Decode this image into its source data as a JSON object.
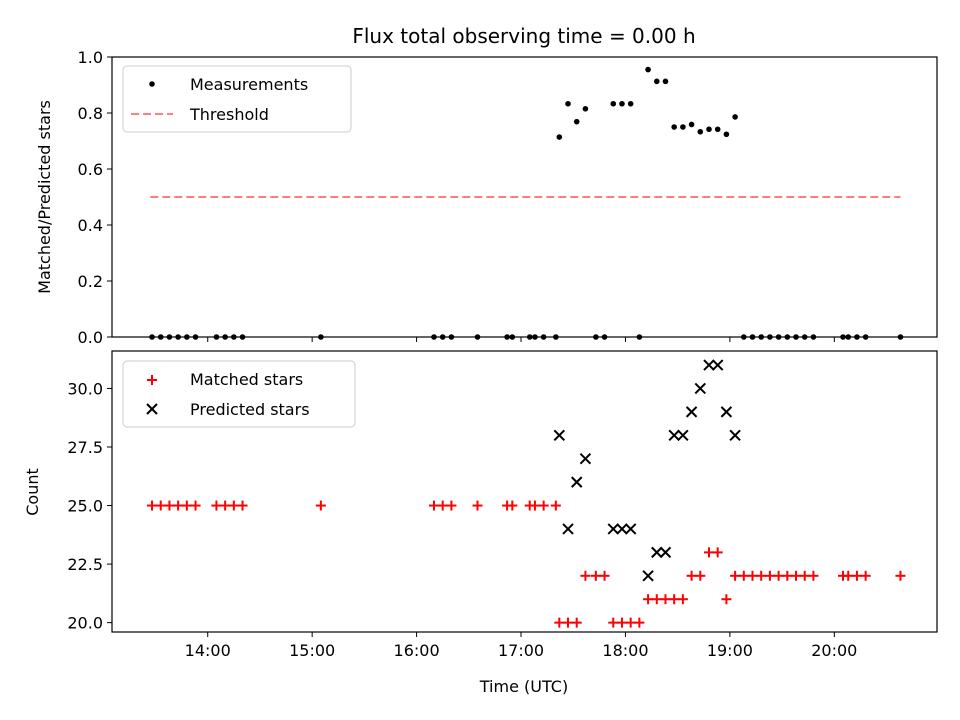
{
  "chart_data": [
    {
      "type": "scatter",
      "title": "Flux total observing time = 0.00 h",
      "xlabel": "",
      "ylabel": "Matched/Predicted stars",
      "ylim": [
        0,
        1.0
      ],
      "yticks": [
        "0.0",
        "0.2",
        "0.4",
        "0.6",
        "0.8",
        "1.0"
      ],
      "legend_position": "top-left",
      "series": [
        {
          "name": "Measurements",
          "marker": "dot",
          "color": "#000000",
          "points": [
            [
              "13:28",
              0
            ],
            [
              "13:33",
              0
            ],
            [
              "13:38",
              0
            ],
            [
              "13:43",
              0
            ],
            [
              "13:48",
              0
            ],
            [
              "13:53",
              0
            ],
            [
              "14:05",
              0
            ],
            [
              "14:10",
              0
            ],
            [
              "14:15",
              0
            ],
            [
              "14:20",
              0
            ],
            [
              "15:05",
              0
            ],
            [
              "16:10",
              0
            ],
            [
              "16:15",
              0
            ],
            [
              "16:20",
              0
            ],
            [
              "16:35",
              0
            ],
            [
              "16:52",
              0
            ],
            [
              "16:55",
              0
            ],
            [
              "17:05",
              0
            ],
            [
              "17:08",
              0
            ],
            [
              "17:13",
              0
            ],
            [
              "17:20",
              0
            ],
            [
              "17:22",
              0.714
            ],
            [
              "17:27",
              0.833
            ],
            [
              "17:32",
              0.769
            ],
            [
              "17:37",
              0.815
            ],
            [
              "17:43",
              0
            ],
            [
              "17:48",
              0
            ],
            [
              "17:53",
              0.833
            ],
            [
              "17:58",
              0.833
            ],
            [
              "18:03",
              0.833
            ],
            [
              "18:08",
              0
            ],
            [
              "18:13",
              0.955
            ],
            [
              "18:18",
              0.913
            ],
            [
              "18:23",
              0.913
            ],
            [
              "18:28",
              0.75
            ],
            [
              "18:33",
              0.75
            ],
            [
              "18:38",
              0.759
            ],
            [
              "18:43",
              0.733
            ],
            [
              "18:48",
              0.742
            ],
            [
              "18:53",
              0.742
            ],
            [
              "18:58",
              0.724
            ],
            [
              "19:03",
              0.786
            ],
            [
              "19:08",
              0
            ],
            [
              "19:13",
              0
            ],
            [
              "19:18",
              0
            ],
            [
              "19:23",
              0
            ],
            [
              "19:28",
              0
            ],
            [
              "19:33",
              0
            ],
            [
              "19:38",
              0
            ],
            [
              "19:43",
              0
            ],
            [
              "19:48",
              0
            ],
            [
              "20:05",
              0
            ],
            [
              "20:08",
              0
            ],
            [
              "20:13",
              0
            ],
            [
              "20:18",
              0
            ],
            [
              "20:38",
              0
            ]
          ]
        },
        {
          "name": "Threshold",
          "marker": "dashed-line",
          "color": "#ff7f7f",
          "points": [
            [
              "13:27",
              0.5
            ],
            [
              "20:38",
              0.5
            ]
          ]
        }
      ]
    },
    {
      "type": "scatter",
      "title": "",
      "xlabel": "Time (UTC)",
      "ylabel": "Count",
      "ylim": [
        19.6,
        31.6
      ],
      "yticks": [
        "20.0",
        "22.5",
        "25.0",
        "27.5",
        "30.0"
      ],
      "xticks": [
        "14:00",
        "15:00",
        "16:00",
        "17:00",
        "18:00",
        "19:00",
        "20:00"
      ],
      "legend_position": "top-left",
      "series": [
        {
          "name": "Matched stars",
          "marker": "plus",
          "color": "#ff0000",
          "points": [
            [
              "13:28",
              25
            ],
            [
              "13:33",
              25
            ],
            [
              "13:38",
              25
            ],
            [
              "13:43",
              25
            ],
            [
              "13:48",
              25
            ],
            [
              "13:53",
              25
            ],
            [
              "14:05",
              25
            ],
            [
              "14:10",
              25
            ],
            [
              "14:15",
              25
            ],
            [
              "14:20",
              25
            ],
            [
              "15:05",
              25
            ],
            [
              "16:10",
              25
            ],
            [
              "16:15",
              25
            ],
            [
              "16:20",
              25
            ],
            [
              "16:35",
              25
            ],
            [
              "16:52",
              25
            ],
            [
              "16:55",
              25
            ],
            [
              "17:05",
              25
            ],
            [
              "17:08",
              25
            ],
            [
              "17:13",
              25
            ],
            [
              "17:20",
              25
            ],
            [
              "17:22",
              20
            ],
            [
              "17:27",
              20
            ],
            [
              "17:32",
              20
            ],
            [
              "17:37",
              22
            ],
            [
              "17:43",
              22
            ],
            [
              "17:48",
              22
            ],
            [
              "17:53",
              20
            ],
            [
              "17:58",
              20
            ],
            [
              "18:03",
              20
            ],
            [
              "18:08",
              20
            ],
            [
              "18:13",
              21
            ],
            [
              "18:18",
              21
            ],
            [
              "18:23",
              21
            ],
            [
              "18:28",
              21
            ],
            [
              "18:33",
              21
            ],
            [
              "18:38",
              22
            ],
            [
              "18:43",
              22
            ],
            [
              "18:48",
              23
            ],
            [
              "18:53",
              23
            ],
            [
              "18:58",
              21
            ],
            [
              "19:03",
              22
            ],
            [
              "19:08",
              22
            ],
            [
              "19:13",
              22
            ],
            [
              "19:18",
              22
            ],
            [
              "19:23",
              22
            ],
            [
              "19:28",
              22
            ],
            [
              "19:33",
              22
            ],
            [
              "19:38",
              22
            ],
            [
              "19:43",
              22
            ],
            [
              "19:48",
              22
            ],
            [
              "20:05",
              22
            ],
            [
              "20:08",
              22
            ],
            [
              "20:13",
              22
            ],
            [
              "20:18",
              22
            ],
            [
              "20:38",
              22
            ]
          ]
        },
        {
          "name": "Predicted stars",
          "marker": "x",
          "color": "#000000",
          "points": [
            [
              "17:22",
              28
            ],
            [
              "17:27",
              24
            ],
            [
              "17:32",
              26
            ],
            [
              "17:37",
              27
            ],
            [
              "17:53",
              24
            ],
            [
              "17:58",
              24
            ],
            [
              "18:03",
              24
            ],
            [
              "18:13",
              22
            ],
            [
              "18:18",
              23
            ],
            [
              "18:23",
              23
            ],
            [
              "18:28",
              28
            ],
            [
              "18:33",
              28
            ],
            [
              "18:38",
              29
            ],
            [
              "18:43",
              30
            ],
            [
              "18:48",
              31
            ],
            [
              "18:53",
              31
            ],
            [
              "18:58",
              29
            ],
            [
              "19:03",
              28
            ]
          ]
        }
      ]
    }
  ]
}
